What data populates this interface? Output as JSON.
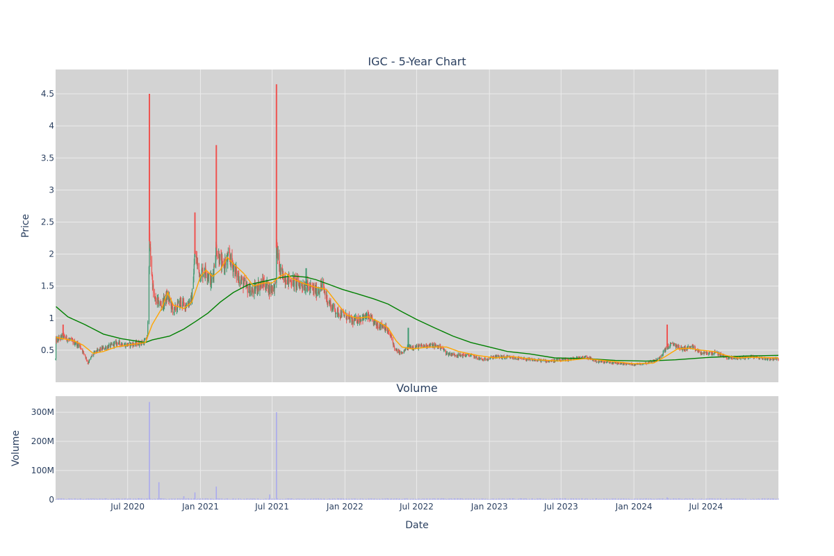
{
  "chart_data": [
    {
      "panel": "price",
      "type": "candlestick",
      "title": "IGC - 5-Year Chart",
      "ylabel": "Price",
      "ylim": [
        0.0,
        4.88
      ],
      "yticks": [
        "0.5",
        "1",
        "1.5",
        "2",
        "2.5",
        "3",
        "3.5",
        "4",
        "4.5"
      ],
      "ytick_values": [
        0.5,
        1,
        1.5,
        2,
        2.5,
        3,
        3.5,
        4,
        4.5
      ],
      "xlim": [
        "2020-01-01",
        "2024-12-31"
      ],
      "grid": true,
      "colors": {
        "plot_bg": "#d3d3d3",
        "grid": "#ebebeb",
        "up": "#3d9970",
        "down": "#ef5350",
        "ma_short": "#ffa500",
        "ma_long": "#008000",
        "text": "#2a3f5f"
      },
      "price_path": [
        [
          "2020-01-02",
          0.65
        ],
        [
          "2020-01-20",
          0.72
        ],
        [
          "2020-02-10",
          0.64
        ],
        [
          "2020-03-01",
          0.58
        ],
        [
          "2020-03-15",
          0.42
        ],
        [
          "2020-03-23",
          0.3
        ],
        [
          "2020-04-05",
          0.45
        ],
        [
          "2020-04-25",
          0.52
        ],
        [
          "2020-05-15",
          0.56
        ],
        [
          "2020-06-05",
          0.62
        ],
        [
          "2020-06-25",
          0.58
        ],
        [
          "2020-07-20",
          0.6
        ],
        [
          "2020-08-10",
          0.62
        ],
        [
          "2020-08-20",
          0.7
        ],
        [
          "2020-08-25",
          2.2
        ],
        [
          "2020-09-05",
          1.3
        ],
        [
          "2020-09-25",
          1.2
        ],
        [
          "2020-10-10",
          1.35
        ],
        [
          "2020-10-25",
          1.1
        ],
        [
          "2020-11-10",
          1.25
        ],
        [
          "2020-11-25",
          1.2
        ],
        [
          "2020-12-10",
          1.3
        ],
        [
          "2020-12-18",
          2.0
        ],
        [
          "2020-12-30",
          1.7
        ],
        [
          "2021-01-15",
          1.75
        ],
        [
          "2021-01-30",
          1.55
        ],
        [
          "2021-02-10",
          2.1
        ],
        [
          "2021-02-25",
          1.8
        ],
        [
          "2021-03-15",
          1.95
        ],
        [
          "2021-04-05",
          1.65
        ],
        [
          "2021-04-25",
          1.5
        ],
        [
          "2021-05-10",
          1.4
        ],
        [
          "2021-05-25",
          1.5
        ],
        [
          "2021-06-10",
          1.55
        ],
        [
          "2021-06-25",
          1.45
        ],
        [
          "2021-07-08",
          1.5
        ],
        [
          "2021-07-12",
          2.1
        ],
        [
          "2021-07-22",
          1.7
        ],
        [
          "2021-08-10",
          1.6
        ],
        [
          "2021-09-01",
          1.55
        ],
        [
          "2021-09-25",
          1.5
        ],
        [
          "2021-10-20",
          1.42
        ],
        [
          "2021-11-05",
          1.5
        ],
        [
          "2021-11-20",
          1.25
        ],
        [
          "2021-12-10",
          1.1
        ],
        [
          "2021-12-30",
          1.05
        ],
        [
          "2022-01-20",
          0.95
        ],
        [
          "2022-02-10",
          1.0
        ],
        [
          "2022-03-01",
          1.02
        ],
        [
          "2022-03-20",
          0.9
        ],
        [
          "2022-04-10",
          0.88
        ],
        [
          "2022-04-28",
          0.7
        ],
        [
          "2022-05-08",
          0.5
        ],
        [
          "2022-05-25",
          0.45
        ],
        [
          "2022-06-10",
          0.55
        ],
        [
          "2022-07-01",
          0.55
        ],
        [
          "2022-08-01",
          0.58
        ],
        [
          "2022-09-01",
          0.55
        ],
        [
          "2022-09-15",
          0.45
        ],
        [
          "2022-10-15",
          0.42
        ],
        [
          "2022-11-15",
          0.42
        ],
        [
          "2022-12-15",
          0.35
        ],
        [
          "2023-01-15",
          0.4
        ],
        [
          "2023-03-01",
          0.38
        ],
        [
          "2023-04-15",
          0.35
        ],
        [
          "2023-06-01",
          0.33
        ],
        [
          "2023-07-15",
          0.35
        ],
        [
          "2023-09-01",
          0.4
        ],
        [
          "2023-10-01",
          0.32
        ],
        [
          "2023-11-15",
          0.3
        ],
        [
          "2024-01-01",
          0.28
        ],
        [
          "2024-02-01",
          0.3
        ],
        [
          "2024-03-01",
          0.35
        ],
        [
          "2024-03-25",
          0.55
        ],
        [
          "2024-04-10",
          0.6
        ],
        [
          "2024-05-01",
          0.52
        ],
        [
          "2024-05-25",
          0.55
        ],
        [
          "2024-06-20",
          0.45
        ],
        [
          "2024-07-25",
          0.46
        ],
        [
          "2024-08-25",
          0.38
        ],
        [
          "2024-09-25",
          0.38
        ],
        [
          "2024-10-25",
          0.4
        ],
        [
          "2024-11-25",
          0.37
        ],
        [
          "2024-12-31",
          0.36
        ]
      ],
      "spikes": [
        [
          "2020-08-25",
          4.5,
          "down"
        ],
        [
          "2020-12-18",
          2.65,
          "down"
        ],
        [
          "2021-02-10",
          3.7,
          "down"
        ],
        [
          "2021-07-12",
          4.65,
          "down"
        ],
        [
          "2021-09-25",
          1.78,
          "up"
        ],
        [
          "2024-03-25",
          0.9,
          "down"
        ],
        [
          "2020-03-23",
          0.28,
          "down"
        ],
        [
          "2020-01-20",
          0.9,
          "down"
        ],
        [
          "2022-06-10",
          0.85,
          "up"
        ]
      ],
      "ma_short": [
        [
          "2020-01-02",
          0.7
        ],
        [
          "2020-02-15",
          0.65
        ],
        [
          "2020-03-10",
          0.58
        ],
        [
          "2020-04-05",
          0.45
        ],
        [
          "2020-05-01",
          0.48
        ],
        [
          "2020-06-01",
          0.55
        ],
        [
          "2020-07-01",
          0.58
        ],
        [
          "2020-08-15",
          0.62
        ],
        [
          "2020-09-01",
          0.9
        ],
        [
          "2020-09-25",
          1.15
        ],
        [
          "2020-10-10",
          1.4
        ],
        [
          "2020-10-25",
          1.2
        ],
        [
          "2020-11-20",
          1.15
        ],
        [
          "2020-12-10",
          1.25
        ],
        [
          "2021-01-01",
          1.65
        ],
        [
          "2021-01-15",
          1.75
        ],
        [
          "2021-02-01",
          1.65
        ],
        [
          "2021-02-20",
          1.75
        ],
        [
          "2021-03-10",
          1.95
        ],
        [
          "2021-03-25",
          1.85
        ],
        [
          "2021-04-20",
          1.7
        ],
        [
          "2021-05-15",
          1.5
        ],
        [
          "2021-06-10",
          1.55
        ],
        [
          "2021-07-01",
          1.55
        ],
        [
          "2021-07-20",
          1.65
        ],
        [
          "2021-08-05",
          1.7
        ],
        [
          "2021-08-20",
          1.62
        ],
        [
          "2021-09-15",
          1.55
        ],
        [
          "2021-10-20",
          1.48
        ],
        [
          "2021-11-15",
          1.45
        ],
        [
          "2021-12-10",
          1.25
        ],
        [
          "2022-01-05",
          1.05
        ],
        [
          "2022-02-01",
          1.0
        ],
        [
          "2022-03-01",
          1.02
        ],
        [
          "2022-03-25",
          0.95
        ],
        [
          "2022-04-20",
          0.85
        ],
        [
          "2022-05-10",
          0.65
        ],
        [
          "2022-05-25",
          0.55
        ],
        [
          "2022-06-20",
          0.52
        ],
        [
          "2022-08-01",
          0.55
        ],
        [
          "2022-09-15",
          0.55
        ],
        [
          "2022-10-15",
          0.48
        ],
        [
          "2022-12-01",
          0.42
        ],
        [
          "2023-01-15",
          0.38
        ],
        [
          "2023-03-01",
          0.4
        ],
        [
          "2023-05-01",
          0.35
        ],
        [
          "2023-07-01",
          0.33
        ],
        [
          "2023-09-01",
          0.37
        ],
        [
          "2023-11-01",
          0.33
        ],
        [
          "2024-01-01",
          0.29
        ],
        [
          "2024-02-20",
          0.3
        ],
        [
          "2024-03-20",
          0.4
        ],
        [
          "2024-04-20",
          0.52
        ],
        [
          "2024-05-20",
          0.53
        ],
        [
          "2024-06-20",
          0.5
        ],
        [
          "2024-07-20",
          0.48
        ],
        [
          "2024-08-20",
          0.42
        ],
        [
          "2024-09-20",
          0.38
        ],
        [
          "2024-10-20",
          0.39
        ],
        [
          "2024-12-31",
          0.38
        ]
      ],
      "ma_long": [
        [
          "2020-01-02",
          1.18
        ],
        [
          "2020-02-01",
          1.02
        ],
        [
          "2020-03-15",
          0.9
        ],
        [
          "2020-05-01",
          0.75
        ],
        [
          "2020-06-15",
          0.68
        ],
        [
          "2020-08-15",
          0.62
        ],
        [
          "2020-09-01",
          0.66
        ],
        [
          "2020-10-15",
          0.72
        ],
        [
          "2020-11-20",
          0.83
        ],
        [
          "2020-12-20",
          0.95
        ],
        [
          "2021-01-20",
          1.08
        ],
        [
          "2021-02-20",
          1.25
        ],
        [
          "2021-03-25",
          1.4
        ],
        [
          "2021-05-01",
          1.52
        ],
        [
          "2021-06-15",
          1.58
        ],
        [
          "2021-07-20",
          1.63
        ],
        [
          "2021-08-20",
          1.66
        ],
        [
          "2021-09-25",
          1.64
        ],
        [
          "2021-10-20",
          1.6
        ],
        [
          "2021-11-20",
          1.53
        ],
        [
          "2021-12-25",
          1.45
        ],
        [
          "2022-02-01",
          1.38
        ],
        [
          "2022-03-15",
          1.3
        ],
        [
          "2022-04-20",
          1.22
        ],
        [
          "2022-05-25",
          1.1
        ],
        [
          "2022-07-01",
          0.98
        ],
        [
          "2022-08-15",
          0.85
        ],
        [
          "2022-10-01",
          0.72
        ],
        [
          "2022-11-15",
          0.62
        ],
        [
          "2023-01-01",
          0.55
        ],
        [
          "2023-02-15",
          0.48
        ],
        [
          "2023-04-15",
          0.44
        ],
        [
          "2023-06-15",
          0.38
        ],
        [
          "2023-09-01",
          0.37
        ],
        [
          "2023-11-15",
          0.34
        ],
        [
          "2024-02-01",
          0.33
        ],
        [
          "2024-04-15",
          0.35
        ],
        [
          "2024-07-15",
          0.39
        ],
        [
          "2024-10-15",
          0.41
        ],
        [
          "2024-12-31",
          0.42
        ]
      ]
    },
    {
      "panel": "volume",
      "type": "bar",
      "title": "Volume",
      "xlabel": "Date",
      "ylabel": "Volume",
      "ylim": [
        0,
        355000000
      ],
      "yticks": [
        "0",
        "100M",
        "200M",
        "300M"
      ],
      "ytick_values": [
        0,
        100000000,
        200000000,
        300000000
      ],
      "xticks": [
        "Jul 2020",
        "Jan 2021",
        "Jul 2021",
        "Jan 2022",
        "Jul 2022",
        "Jan 2023",
        "Jul 2023",
        "Jan 2024",
        "Jul 2024"
      ],
      "xtick_dates": [
        "2020-07-01",
        "2021-01-01",
        "2021-07-01",
        "2022-01-01",
        "2022-07-01",
        "2023-01-01",
        "2023-07-01",
        "2024-01-01",
        "2024-07-01"
      ],
      "bar_color": "#aaaaee",
      "spikes": [
        [
          "2020-08-25",
          335000000
        ],
        [
          "2020-09-18",
          60000000
        ],
        [
          "2020-12-18",
          25000000
        ],
        [
          "2021-02-10",
          45000000
        ],
        [
          "2021-07-12",
          300000000
        ],
        [
          "2021-06-25",
          18000000
        ],
        [
          "2020-11-20",
          12000000
        ],
        [
          "2024-03-25",
          8000000
        ]
      ]
    }
  ]
}
